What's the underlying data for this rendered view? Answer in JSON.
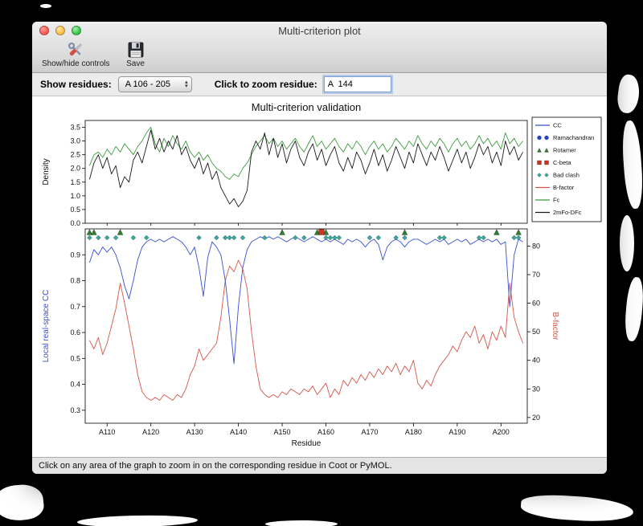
{
  "window": {
    "title": "Multi-criterion plot",
    "toolbar": {
      "show_hide_label": "Show/hide controls",
      "save_label": "Save"
    },
    "controls": {
      "show_residues_label": "Show residues:",
      "residue_range_value": "A 106 - 205",
      "zoom_residue_label": "Click to zoom residue:",
      "zoom_residue_value": "A  144"
    },
    "status_text": "Click on any area of the graph to zoom in on the corresponding residue in Coot or PyMOL."
  },
  "chart_data": {
    "type": "line",
    "title": "Multi-criterion validation",
    "xlabel": "Residue",
    "x_start": 106,
    "x_range": [
      105,
      206
    ],
    "x_tick_values": [
      110,
      120,
      130,
      140,
      150,
      160,
      170,
      180,
      190,
      200
    ],
    "x_tick_labels": [
      "A110",
      "A120",
      "A130",
      "A140",
      "A150",
      "A160",
      "A170",
      "A180",
      "A190",
      "A200"
    ],
    "top_plot": {
      "ylabel": "Density",
      "ylim": [
        0,
        3.75
      ],
      "yticks": [
        0.0,
        0.5,
        1.0,
        1.5,
        2.0,
        2.5,
        3.0,
        3.5
      ],
      "series": [
        {
          "name": "Fc",
          "color": "#3f9b3f",
          "values": [
            2.1,
            2.5,
            2.6,
            2.4,
            2.7,
            2.5,
            2.8,
            2.6,
            2.9,
            2.7,
            2.5,
            2.8,
            3.0,
            3.3,
            3.5,
            2.9,
            2.6,
            3.1,
            2.8,
            3.2,
            2.9,
            2.7,
            3.0,
            2.6,
            2.4,
            2.6,
            2.3,
            2.5,
            2.2,
            2.0,
            1.9,
            1.7,
            1.6,
            1.8,
            1.7,
            2.0,
            2.2,
            2.5,
            2.8,
            3.0,
            3.2,
            2.9,
            3.1,
            2.8,
            3.0,
            2.7,
            2.9,
            3.1,
            2.8,
            2.6,
            2.9,
            3.2,
            2.8,
            3.0,
            2.7,
            2.9,
            3.1,
            2.8,
            2.6,
            2.9,
            2.7,
            3.0,
            2.8,
            2.5,
            2.8,
            3.0,
            2.7,
            2.9,
            2.6,
            2.8,
            3.1,
            2.9,
            2.7,
            3.0,
            2.8,
            3.2,
            2.9,
            2.7,
            3.0,
            2.8,
            3.1,
            2.9,
            2.6,
            2.9,
            3.1,
            2.8,
            3.0,
            2.7,
            2.9,
            3.2,
            2.9,
            3.1,
            2.8,
            3.0,
            2.7,
            3.3,
            2.9,
            3.1,
            2.8,
            3.0
          ]
        },
        {
          "name": "2mFo-DFc",
          "color": "#1a1a1a",
          "values": [
            1.6,
            2.2,
            2.5,
            2.0,
            2.4,
            1.8,
            2.1,
            1.3,
            1.7,
            1.5,
            2.3,
            2.6,
            2.2,
            2.8,
            3.4,
            2.7,
            3.1,
            2.6,
            3.0,
            2.7,
            3.2,
            2.5,
            2.8,
            2.3,
            2.0,
            2.4,
            1.8,
            2.2,
            1.6,
            1.9,
            1.3,
            1.0,
            0.7,
            0.9,
            0.6,
            0.8,
            1.2,
            2.6,
            3.0,
            2.7,
            3.3,
            2.5,
            3.1,
            2.4,
            2.9,
            2.2,
            2.7,
            3.0,
            2.4,
            2.1,
            2.6,
            2.9,
            2.3,
            2.7,
            2.1,
            2.5,
            2.8,
            2.2,
            1.9,
            2.4,
            2.0,
            2.6,
            2.3,
            1.8,
            2.2,
            2.7,
            2.1,
            2.5,
            1.9,
            2.3,
            2.8,
            2.4,
            2.0,
            2.6,
            2.2,
            2.9,
            2.5,
            2.1,
            2.6,
            2.3,
            2.8,
            2.4,
            1.9,
            2.3,
            2.7,
            2.2,
            2.6,
            2.0,
            2.4,
            2.9,
            2.5,
            2.8,
            2.2,
            2.6,
            2.1,
            3.0,
            2.5,
            2.8,
            2.3,
            2.6
          ]
        }
      ]
    },
    "bottom_plot": {
      "left_ylabel": "Local real-space CC",
      "left_color": "#3a4fd0",
      "left_ylim": [
        0.25,
        1.0
      ],
      "left_yticks": [
        0.3,
        0.4,
        0.5,
        0.6,
        0.7,
        0.8,
        0.9
      ],
      "right_ylabel": "B-factor",
      "right_color": "#d4554a",
      "right_ylim": [
        18,
        86
      ],
      "right_yticks": [
        20,
        30,
        40,
        50,
        60,
        70,
        80
      ],
      "cc": {
        "name": "CC",
        "color": "#3a4fd0",
        "values": [
          0.87,
          0.92,
          0.9,
          0.93,
          0.91,
          0.93,
          0.9,
          0.85,
          0.78,
          0.73,
          0.8,
          0.88,
          0.93,
          0.95,
          0.96,
          0.95,
          0.96,
          0.95,
          0.96,
          0.97,
          0.96,
          0.95,
          0.93,
          0.9,
          0.93,
          0.85,
          0.74,
          0.89,
          0.95,
          0.93,
          0.9,
          0.8,
          0.65,
          0.48,
          0.7,
          0.85,
          0.92,
          0.95,
          0.96,
          0.97,
          0.96,
          0.97,
          0.96,
          0.97,
          0.96,
          0.95,
          0.96,
          0.97,
          0.96,
          0.95,
          0.96,
          0.97,
          0.96,
          0.95,
          0.96,
          0.95,
          0.96,
          0.95,
          0.94,
          0.96,
          0.95,
          0.96,
          0.95,
          0.93,
          0.95,
          0.96,
          0.94,
          0.88,
          0.93,
          0.95,
          0.96,
          0.95,
          0.93,
          0.95,
          0.96,
          0.96,
          0.95,
          0.94,
          0.95,
          0.96,
          0.95,
          0.96,
          0.94,
          0.95,
          0.96,
          0.95,
          0.96,
          0.94,
          0.95,
          0.96,
          0.95,
          0.96,
          0.95,
          0.96,
          0.94,
          0.95,
          0.7,
          0.9,
          0.96,
          0.95
        ]
      },
      "bfactor": {
        "name": "B-factor",
        "color": "#d4554a",
        "values": [
          47,
          44,
          48,
          42,
          46,
          52,
          58,
          67,
          60,
          52,
          44,
          35,
          29,
          27,
          26,
          27,
          26,
          28,
          27,
          26,
          28,
          27,
          30,
          35,
          38,
          44,
          40,
          42,
          44,
          46,
          55,
          68,
          73,
          71,
          75,
          72,
          65,
          50,
          38,
          30,
          28,
          27,
          28,
          27,
          29,
          28,
          30,
          29,
          28,
          30,
          29,
          31,
          28,
          30,
          32,
          27,
          30,
          28,
          33,
          31,
          34,
          32,
          35,
          33,
          36,
          34,
          37,
          35,
          38,
          36,
          39,
          35,
          38,
          36,
          40,
          32,
          30,
          33,
          31,
          35,
          38,
          40,
          42,
          45,
          43,
          47,
          50,
          48,
          52,
          46,
          49,
          44,
          50,
          47,
          52,
          48,
          67,
          55,
          50,
          46
        ]
      },
      "markers": [
        {
          "name": "Ramachandran",
          "shape": "circle",
          "color": "#2244cc",
          "residues": []
        },
        {
          "name": "Rotamer",
          "shape": "triangle",
          "color": "#2e7d32",
          "residues": [
            106,
            107,
            113,
            150,
            158,
            160,
            178,
            199,
            204
          ]
        },
        {
          "name": "C-beta",
          "shape": "square",
          "color": "#cc3322",
          "residues": [
            159
          ]
        },
        {
          "name": "Bad clash",
          "shape": "diamond",
          "color": "#3aa79e",
          "residues": [
            106,
            108,
            110,
            112,
            116,
            119,
            131,
            135,
            137,
            138,
            139,
            141,
            146,
            153,
            155,
            160,
            161,
            162,
            163,
            170,
            172,
            176,
            178,
            186,
            187,
            195,
            196,
            203,
            204
          ]
        }
      ]
    },
    "legend": [
      {
        "label": "CC",
        "glyph": "line",
        "color": "#3a4fd0"
      },
      {
        "label": "Ramachandran",
        "glyph": "circle",
        "color": "#2244cc"
      },
      {
        "label": "Rotamer",
        "glyph": "triangle",
        "color": "#2e7d32"
      },
      {
        "label": "C-beta",
        "glyph": "square",
        "color": "#cc3322"
      },
      {
        "label": "Bad clash",
        "glyph": "diamond",
        "color": "#3aa79e"
      },
      {
        "label": "B-factor",
        "glyph": "line",
        "color": "#d4554a"
      },
      {
        "label": "Fc",
        "glyph": "line",
        "color": "#3f9b3f"
      },
      {
        "label": "2mFo-DFc",
        "glyph": "line",
        "color": "#1a1a1a"
      }
    ]
  }
}
